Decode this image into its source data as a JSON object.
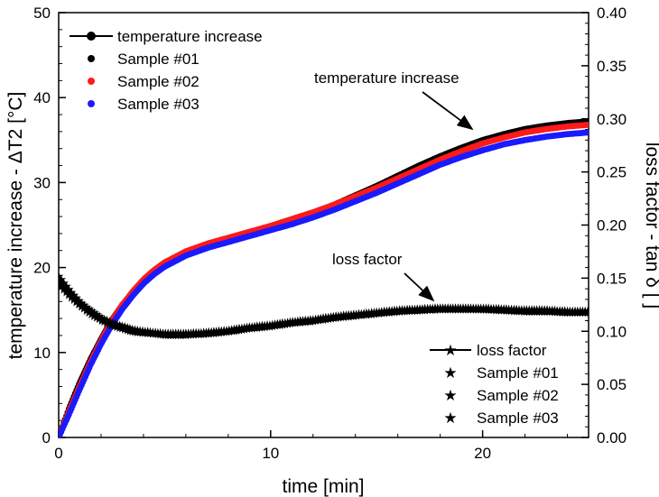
{
  "chart_data": {
    "type": "scatter",
    "xlabel": "time [min]",
    "ylabel_left": "temperature increase - ΔT2 [°C]",
    "ylabel_right": "loss factor - tan δ [ ]",
    "xlim": [
      0,
      25
    ],
    "ylim_left": [
      0,
      50
    ],
    "ylim_right": [
      0,
      0.4
    ],
    "x_ticks": [
      0,
      10,
      20
    ],
    "y_left_ticks": [
      0,
      10,
      20,
      30,
      40,
      50
    ],
    "y_right_ticks": [
      "0.00",
      "0.05",
      "0.10",
      "0.15",
      "0.20",
      "0.25",
      "0.30",
      "0.35",
      "0.40"
    ],
    "grid": false,
    "legends": [
      {
        "placement": "top-left",
        "title": "temperature increase",
        "marker": "circle",
        "entries": [
          "Sample #01",
          "Sample #02",
          "Sample #03"
        ]
      },
      {
        "placement": "bottom-right",
        "title": "loss factor",
        "marker": "star",
        "entries": [
          "Sample #01",
          "Sample #02",
          "Sample #03"
        ]
      }
    ],
    "annotations": [
      "temperature increase",
      "loss factor"
    ],
    "colors": {
      "Sample #01": "#000000",
      "Sample #02": "#ff1a1a",
      "Sample #03": "#1a1aff"
    },
    "temperature_series": [
      {
        "name": "Sample #01",
        "axis": "left",
        "x": [
          0,
          0.5,
          1,
          1.5,
          2,
          2.5,
          3,
          3.5,
          4,
          4.5,
          5,
          6,
          7,
          8,
          9,
          10,
          11,
          12,
          13,
          14,
          15,
          16,
          17,
          18,
          19,
          20,
          21,
          22,
          23,
          24,
          25
        ],
        "y": [
          0,
          3.5,
          6.5,
          9.2,
          11.6,
          13.8,
          15.6,
          17.1,
          18.4,
          19.5,
          20.4,
          21.7,
          22.6,
          23.3,
          24.0,
          24.7,
          25.5,
          26.4,
          27.4,
          28.5,
          29.6,
          30.8,
          32.0,
          33.1,
          34.1,
          35.0,
          35.7,
          36.3,
          36.7,
          37.0,
          37.2
        ]
      },
      {
        "name": "Sample #02",
        "axis": "left",
        "x": [
          0,
          0.5,
          1,
          1.5,
          2,
          2.5,
          3,
          3.5,
          4,
          4.5,
          5,
          6,
          7,
          8,
          9,
          10,
          11,
          12,
          13,
          14,
          15,
          16,
          17,
          18,
          19,
          20,
          21,
          22,
          23,
          24,
          25
        ],
        "y": [
          0,
          3.2,
          6.1,
          8.9,
          11.4,
          13.7,
          15.6,
          17.2,
          18.6,
          19.7,
          20.6,
          21.9,
          22.8,
          23.5,
          24.2,
          24.9,
          25.7,
          26.5,
          27.4,
          28.4,
          29.4,
          30.5,
          31.6,
          32.7,
          33.7,
          34.6,
          35.3,
          35.9,
          36.3,
          36.6,
          36.8
        ]
      },
      {
        "name": "Sample #03",
        "axis": "left",
        "x": [
          0,
          0.5,
          1,
          1.5,
          2,
          2.5,
          3,
          3.5,
          4,
          4.5,
          5,
          6,
          7,
          8,
          9,
          10,
          11,
          12,
          13,
          14,
          15,
          16,
          17,
          18,
          19,
          20,
          21,
          22,
          23,
          24,
          25
        ],
        "y": [
          0,
          2.8,
          5.7,
          8.5,
          11.0,
          13.2,
          15.1,
          16.7,
          18.1,
          19.2,
          20.1,
          21.4,
          22.3,
          23.0,
          23.7,
          24.4,
          25.1,
          25.9,
          26.8,
          27.8,
          28.8,
          29.9,
          31.0,
          32.1,
          33.0,
          33.8,
          34.5,
          35.0,
          35.4,
          35.7,
          35.9
        ]
      }
    ],
    "loss_factor_series": [
      {
        "name": "Sample #01",
        "axis": "right",
        "x": [
          0,
          0.5,
          1,
          1.5,
          2,
          2.5,
          3,
          3.5,
          4,
          5,
          6,
          7,
          8,
          9,
          10,
          11,
          12,
          13,
          14,
          15,
          16,
          17,
          18,
          19,
          20,
          21,
          22,
          23,
          24,
          25
        ],
        "y": [
          0.148,
          0.136,
          0.126,
          0.118,
          0.112,
          0.107,
          0.104,
          0.101,
          0.1,
          0.098,
          0.098,
          0.099,
          0.101,
          0.104,
          0.106,
          0.109,
          0.111,
          0.114,
          0.116,
          0.118,
          0.12,
          0.121,
          0.122,
          0.122,
          0.122,
          0.121,
          0.12,
          0.12,
          0.119,
          0.119
        ]
      },
      {
        "name": "Sample #02",
        "axis": "right",
        "x": [
          0,
          0.5,
          1,
          1.5,
          2,
          2.5,
          3,
          3.5,
          4,
          5,
          6,
          7,
          8,
          9,
          10,
          11,
          12,
          13,
          14,
          15,
          16,
          17,
          18,
          19,
          20,
          21,
          22,
          23,
          24,
          25
        ],
        "y": [
          0.152,
          0.139,
          0.128,
          0.12,
          0.113,
          0.108,
          0.105,
          0.102,
          0.1,
          0.098,
          0.098,
          0.099,
          0.101,
          0.104,
          0.106,
          0.109,
          0.111,
          0.114,
          0.116,
          0.118,
          0.12,
          0.121,
          0.122,
          0.122,
          0.121,
          0.121,
          0.12,
          0.12,
          0.119,
          0.119
        ]
      },
      {
        "name": "Sample #03",
        "axis": "right",
        "x": [
          0,
          0.5,
          1,
          1.5,
          2,
          2.5,
          3,
          3.5,
          4,
          5,
          6,
          7,
          8,
          9,
          10,
          11,
          12,
          13,
          14,
          15,
          16,
          17,
          18,
          19,
          20,
          21,
          22,
          23,
          24,
          25
        ],
        "y": [
          0.145,
          0.134,
          0.125,
          0.117,
          0.111,
          0.106,
          0.103,
          0.1,
          0.099,
          0.097,
          0.097,
          0.098,
          0.1,
          0.103,
          0.105,
          0.108,
          0.11,
          0.113,
          0.115,
          0.117,
          0.119,
          0.12,
          0.121,
          0.121,
          0.121,
          0.12,
          0.119,
          0.119,
          0.118,
          0.118
        ]
      }
    ]
  }
}
